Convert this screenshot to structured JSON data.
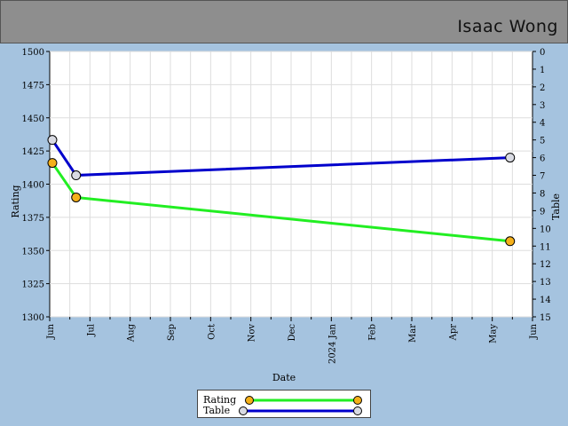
{
  "header": {
    "player_name": "Isaac Wong"
  },
  "colors": {
    "rating": "#22ee22",
    "table": "#0000cc",
    "rating_marker": "#f5b01a",
    "table_marker": "#d9dbe3"
  },
  "legend": {
    "rating": "Rating",
    "table": "Table"
  },
  "chart_data": {
    "type": "line",
    "title": "",
    "xlabel": "Date",
    "ylabel": "Rating",
    "y2label": "Table",
    "x_ticks": [
      "Jun",
      "Jul",
      "Aug",
      "Sep",
      "Oct",
      "Nov",
      "Dec",
      "2024 Jan",
      "Feb",
      "Mar",
      "Apr",
      "May",
      "Jun"
    ],
    "y_ticks": [
      1300,
      1325,
      1350,
      1375,
      1400,
      1425,
      1450,
      1475,
      1500
    ],
    "y2_ticks": [
      0,
      1,
      2,
      3,
      4,
      5,
      6,
      7,
      8,
      9,
      10,
      11,
      12,
      13,
      14,
      15
    ],
    "ylim": [
      1300,
      1500
    ],
    "y2lim": [
      15,
      0
    ],
    "xlim": [
      "2023-06-01",
      "2024-06-01"
    ],
    "grid": true,
    "legend_position": "bottom-center",
    "series": [
      {
        "name": "Rating",
        "axis": "left",
        "points": [
          {
            "x": "2023-06-03",
            "y": 1416
          },
          {
            "x": "2023-06-21",
            "y": 1390
          },
          {
            "x": "2024-05-15",
            "y": 1357
          }
        ]
      },
      {
        "name": "Table",
        "axis": "right",
        "points": [
          {
            "x": "2023-06-03",
            "y": 5
          },
          {
            "x": "2023-06-21",
            "y": 7
          },
          {
            "x": "2024-05-15",
            "y": 6
          }
        ]
      }
    ]
  }
}
